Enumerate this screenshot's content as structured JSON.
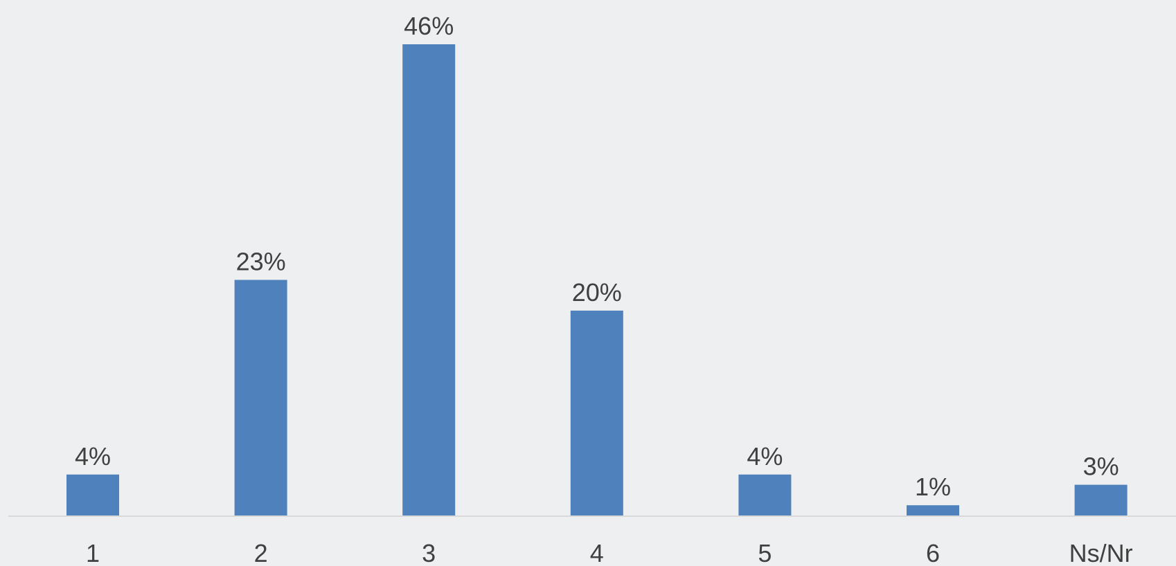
{
  "chart_data": {
    "type": "bar",
    "categories": [
      "1",
      "2",
      "3",
      "4",
      "5",
      "6",
      "Ns/Nr"
    ],
    "values": [
      4,
      23,
      46,
      20,
      4,
      1,
      3
    ],
    "data_labels": [
      "4%",
      "23%",
      "46%",
      "20%",
      "4%",
      "1%",
      "3%"
    ],
    "title": "",
    "xlabel": "",
    "ylabel": "",
    "ylim": [
      0,
      46
    ],
    "grid": false,
    "legend": "none",
    "colors": {
      "bar": "#4f81bd",
      "background": "#eeeff1",
      "text": "#404040",
      "axis": "#d9d9d9"
    }
  }
}
